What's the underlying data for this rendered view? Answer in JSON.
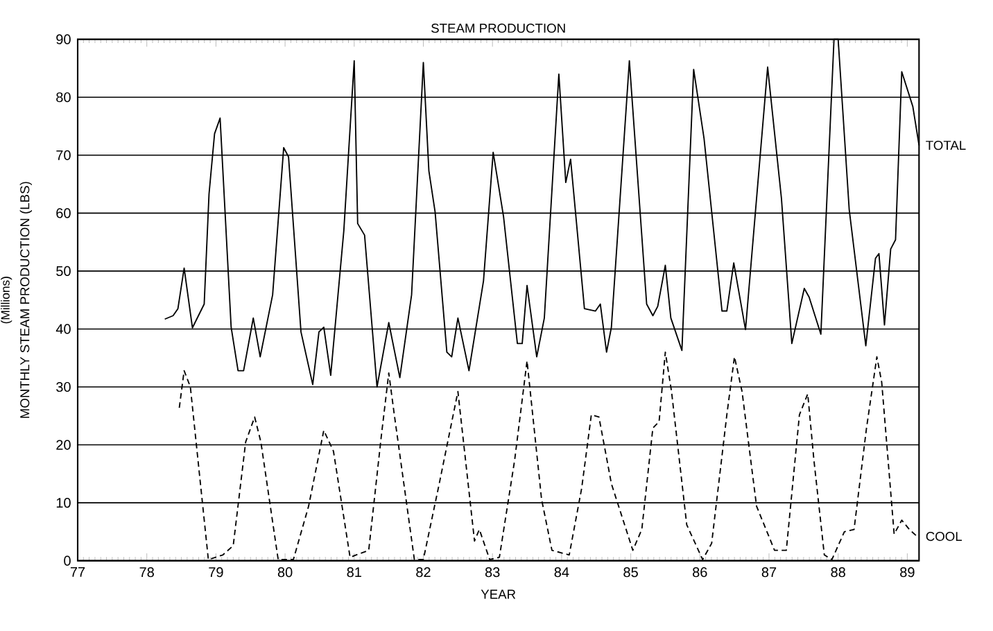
{
  "chart_data": {
    "type": "line",
    "title": "STEAM PRODUCTION",
    "xlabel": "YEAR",
    "ylabel": "MONTHLY STEAM PRODUCTION (LBS)",
    "annotations": [
      "(Millions)"
    ],
    "xlim": [
      77,
      89.17
    ],
    "xticks": [
      77,
      78,
      79,
      80,
      81,
      82,
      83,
      84,
      85,
      86,
      87,
      88,
      89
    ],
    "ylim": [
      0,
      90
    ],
    "yticks": [
      0,
      10,
      20,
      30,
      40,
      50,
      60,
      70,
      80,
      90
    ],
    "grid": "y",
    "legend": false,
    "marker": "none",
    "series": [
      {
        "name": "TOTAL",
        "color": "#000000",
        "line_style": "solid",
        "x": [
          78.26,
          78.38,
          78.45,
          78.54,
          78.66,
          78.83,
          78.9,
          78.98,
          79.06,
          79.22,
          79.32,
          79.4,
          79.54,
          79.64,
          79.82,
          79.98,
          80.05,
          80.23,
          80.4,
          80.49,
          80.56,
          80.66,
          80.85,
          81.0,
          81.05,
          81.15,
          81.33,
          81.5,
          81.66,
          81.83,
          82.0,
          82.08,
          82.17,
          82.34,
          82.41,
          82.5,
          82.66,
          82.87,
          83.01,
          83.16,
          83.36,
          83.43,
          83.5,
          83.64,
          83.75,
          83.96,
          84.06,
          84.13,
          84.33,
          84.49,
          84.56,
          84.65,
          84.72,
          84.98,
          85.23,
          85.32,
          85.39,
          85.5,
          85.58,
          85.74,
          85.91,
          86.06,
          86.32,
          86.39,
          86.49,
          86.66,
          86.98,
          87.18,
          87.33,
          87.51,
          87.58,
          87.75,
          87.94,
          88.0,
          88.16,
          88.4,
          88.54,
          88.59,
          88.67,
          88.76,
          88.83,
          88.92,
          89.08,
          89.17
        ],
        "values": [
          41.7,
          42.3,
          43.5,
          50.5,
          40.2,
          44.3,
          63.3,
          73.7,
          76.4,
          40.3,
          32.8,
          32.8,
          41.9,
          35.2,
          45.9,
          71.3,
          69.7,
          39.5,
          30.4,
          39.5,
          40.3,
          32,
          57,
          86.3,
          58.2,
          56.2,
          30,
          41.1,
          31.6,
          45.9,
          86,
          67.3,
          60.2,
          36,
          35.2,
          41.9,
          32.8,
          48.3,
          70.5,
          59.4,
          37.5,
          37.5,
          47.5,
          35.2,
          41.9,
          84,
          65.3,
          69.3,
          43.5,
          43.1,
          44.3,
          36,
          40.3,
          86.3,
          44.3,
          42.3,
          43.9,
          51,
          41.9,
          36.3,
          84.8,
          72.9,
          43.1,
          43.1,
          51.4,
          39.9,
          85.2,
          62.5,
          37.5,
          47,
          45.5,
          39.1,
          90,
          90,
          60.6,
          37.1,
          52.2,
          53,
          40.7,
          53.8,
          55.4,
          84.4,
          78.4,
          71.7
        ]
      },
      {
        "name": "COOL",
        "color": "#000000",
        "line_style": "dashed",
        "x": [
          78.47,
          78.54,
          78.63,
          78.89,
          79.1,
          79.25,
          79.43,
          79.56,
          79.65,
          79.9,
          80.12,
          80.34,
          80.56,
          80.7,
          80.94,
          81.21,
          81.39,
          81.5,
          81.58,
          81.87,
          82.0,
          82.23,
          82.5,
          82.74,
          82.81,
          82.96,
          83.1,
          83.32,
          83.5,
          83.71,
          83.86,
          84.11,
          84.29,
          84.43,
          84.54,
          84.72,
          85.03,
          85.16,
          85.32,
          85.41,
          85.5,
          85.59,
          85.81,
          86.04,
          86.17,
          86.39,
          86.5,
          86.61,
          86.82,
          87.08,
          87.25,
          87.44,
          87.56,
          87.65,
          87.8,
          87.91,
          88.09,
          88.23,
          88.41,
          88.56,
          88.63,
          88.81,
          88.92,
          89.03,
          89.14
        ],
        "values": [
          26.4,
          32.8,
          30,
          0.2,
          1,
          2.6,
          20.5,
          24.8,
          20.5,
          0.2,
          0.2,
          9.4,
          22.5,
          18.9,
          0.6,
          1.8,
          21.3,
          32.4,
          25.2,
          0.2,
          0.2,
          13.3,
          29.2,
          3.4,
          5.4,
          0.2,
          0.6,
          17.3,
          34.5,
          10.6,
          1.8,
          1,
          12.5,
          25.2,
          24.8,
          13.3,
          1.8,
          5.4,
          22.9,
          24,
          36,
          29.2,
          6.2,
          0.2,
          3,
          25.2,
          35.2,
          29.2,
          9.4,
          1.8,
          1.8,
          25.2,
          28.8,
          17.3,
          1,
          0.2,
          5,
          5.4,
          22.9,
          35.2,
          30.8,
          4.6,
          7,
          5.4,
          4.2
        ]
      }
    ]
  }
}
